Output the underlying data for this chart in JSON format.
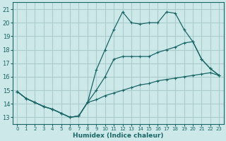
{
  "xlabel": "Humidex (Indice chaleur)",
  "bg_color": "#cce8e8",
  "grid_color": "#aacccc",
  "line_color": "#1a6666",
  "xlim": [
    -0.5,
    23.5
  ],
  "ylim": [
    12.5,
    21.5
  ],
  "xticks": [
    0,
    1,
    2,
    3,
    4,
    5,
    6,
    7,
    8,
    9,
    10,
    11,
    12,
    13,
    14,
    15,
    16,
    17,
    18,
    19,
    20,
    21,
    22,
    23
  ],
  "yticks": [
    13,
    14,
    15,
    16,
    17,
    18,
    19,
    20,
    21
  ],
  "line1_x": [
    0,
    1,
    2,
    3,
    4,
    5,
    6,
    7,
    8,
    9,
    10,
    11,
    12,
    13,
    14,
    15,
    16,
    17,
    18,
    19,
    20,
    21,
    22,
    23
  ],
  "line1_y": [
    14.9,
    14.4,
    14.1,
    13.8,
    13.6,
    13.3,
    13.0,
    13.1,
    14.1,
    14.3,
    14.6,
    14.8,
    15.0,
    15.2,
    15.4,
    15.5,
    15.7,
    15.8,
    15.9,
    16.0,
    16.1,
    16.2,
    16.3,
    16.1
  ],
  "line2_x": [
    0,
    1,
    2,
    3,
    4,
    5,
    6,
    7,
    8,
    9,
    10,
    11,
    12,
    13,
    14,
    15,
    16,
    17,
    18,
    19,
    20,
    21,
    22,
    23
  ],
  "line2_y": [
    14.9,
    14.4,
    14.1,
    13.8,
    13.6,
    13.3,
    13.0,
    13.1,
    14.1,
    15.0,
    16.0,
    17.3,
    17.5,
    17.5,
    17.5,
    17.5,
    17.8,
    18.0,
    18.2,
    18.5,
    18.6,
    17.3,
    16.6,
    16.1
  ],
  "line3_x": [
    0,
    1,
    2,
    3,
    4,
    5,
    6,
    7,
    8,
    9,
    10,
    11,
    12,
    13,
    14,
    15,
    16,
    17,
    18,
    19,
    20,
    21,
    22,
    23
  ],
  "line3_y": [
    14.9,
    14.4,
    14.1,
    13.8,
    13.6,
    13.3,
    13.0,
    13.1,
    14.1,
    16.5,
    18.0,
    19.5,
    20.8,
    20.0,
    19.9,
    20.0,
    20.0,
    20.8,
    20.7,
    19.5,
    18.6,
    17.3,
    16.6,
    16.1
  ]
}
